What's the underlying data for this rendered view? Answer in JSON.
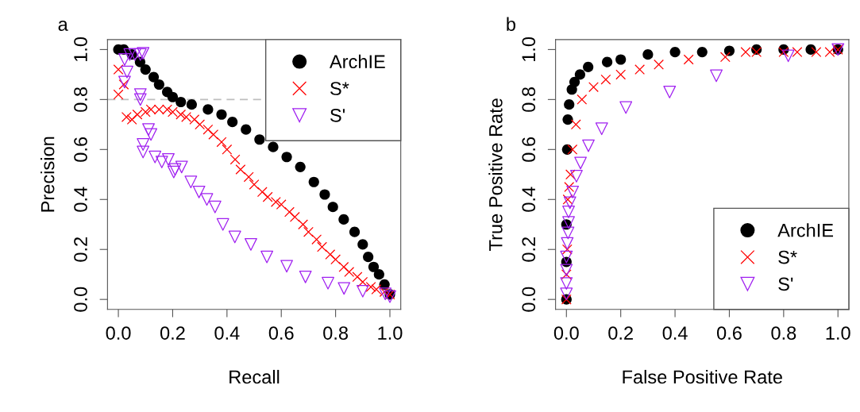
{
  "chart_data": [
    {
      "type": "scatter",
      "title": "a",
      "xlabel": "Recall",
      "ylabel": "Precision",
      "xlim": [
        -0.04,
        1.04
      ],
      "ylim": [
        -0.04,
        1.04
      ],
      "xticks": [
        {
          "value": 0,
          "label": "0.0"
        },
        {
          "value": 0.2,
          "label": "0.2"
        },
        {
          "value": 0.4,
          "label": "0.4"
        },
        {
          "value": 0.6,
          "label": "0.6"
        },
        {
          "value": 0.8,
          "label": "0.8"
        },
        {
          "value": 1,
          "label": "1.0"
        }
      ],
      "yticks": [
        {
          "value": 0,
          "label": "0.0"
        },
        {
          "value": 0.2,
          "label": "0.2"
        },
        {
          "value": 0.4,
          "label": "0.4"
        },
        {
          "value": 0.6,
          "label": "0.6"
        },
        {
          "value": 0.8,
          "label": "0.8"
        },
        {
          "value": 1,
          "label": "1.0"
        }
      ],
      "grid": false,
      "legend": "top right",
      "ref_lines": [
        {
          "axis": "y",
          "value": 0.8,
          "color": "#bebebe",
          "line_style": "dashed"
        }
      ],
      "series": [
        {
          "name": "ArchIE",
          "color": "#000000",
          "marker": "circle",
          "x": [
            0.0,
            0.02,
            0.05,
            0.08,
            0.1,
            0.13,
            0.15,
            0.18,
            0.2,
            0.23,
            0.27,
            0.33,
            0.38,
            0.42,
            0.47,
            0.52,
            0.57,
            0.62,
            0.67,
            0.72,
            0.76,
            0.79,
            0.83,
            0.87,
            0.9,
            0.92,
            0.94,
            0.96,
            0.98,
            1.0
          ],
          "values": [
            1.0,
            1.0,
            0.98,
            0.95,
            0.92,
            0.89,
            0.86,
            0.83,
            0.81,
            0.79,
            0.78,
            0.76,
            0.74,
            0.71,
            0.68,
            0.64,
            0.61,
            0.57,
            0.53,
            0.47,
            0.42,
            0.37,
            0.32,
            0.27,
            0.22,
            0.17,
            0.13,
            0.1,
            0.06,
            0.02
          ]
        },
        {
          "name": "S*",
          "color": "#ff0000",
          "marker": "cross",
          "x": [
            0.0,
            0.0,
            0.02,
            0.03,
            0.05,
            0.07,
            0.1,
            0.12,
            0.15,
            0.18,
            0.2,
            0.23,
            0.25,
            0.28,
            0.3,
            0.33,
            0.35,
            0.38,
            0.4,
            0.43,
            0.45,
            0.48,
            0.5,
            0.53,
            0.55,
            0.58,
            0.6,
            0.63,
            0.65,
            0.68,
            0.7,
            0.73,
            0.75,
            0.78,
            0.8,
            0.83,
            0.85,
            0.88,
            0.9,
            0.93,
            0.95,
            0.98,
            1.0
          ],
          "values": [
            0.92,
            0.82,
            0.86,
            0.73,
            0.72,
            0.74,
            0.75,
            0.76,
            0.76,
            0.76,
            0.75,
            0.74,
            0.73,
            0.72,
            0.7,
            0.68,
            0.66,
            0.63,
            0.6,
            0.56,
            0.52,
            0.49,
            0.46,
            0.43,
            0.41,
            0.39,
            0.38,
            0.35,
            0.33,
            0.3,
            0.27,
            0.24,
            0.21,
            0.18,
            0.16,
            0.13,
            0.11,
            0.09,
            0.07,
            0.05,
            0.04,
            0.03,
            0.02
          ]
        },
        {
          "name": "S'",
          "color": "#a020f0",
          "marker": "triangle",
          "x": [
            0.023,
            0.032,
            0.023,
            0.042,
            0.061,
            0.081,
            0.091,
            0.081,
            0.081,
            0.111,
            0.12,
            0.091,
            0.091,
            0.135,
            0.16,
            0.184,
            0.209,
            0.233,
            0.204,
            0.267,
            0.297,
            0.326,
            0.356,
            0.385,
            0.429,
            0.488,
            0.547,
            0.62,
            0.689,
            0.772,
            0.831,
            0.9,
            0.983,
            1.0
          ],
          "values": [
            0.96,
            0.91,
            0.87,
            0.98,
            0.98,
            0.98,
            0.985,
            0.82,
            0.8,
            0.68,
            0.66,
            0.62,
            0.59,
            0.57,
            0.55,
            0.56,
            0.52,
            0.53,
            0.51,
            0.47,
            0.43,
            0.4,
            0.37,
            0.3,
            0.25,
            0.22,
            0.17,
            0.133,
            0.09,
            0.065,
            0.044,
            0.033,
            0.022,
            0.011
          ]
        }
      ]
    },
    {
      "type": "scatter",
      "title": "b",
      "xlabel": "False Positive Rate",
      "ylabel": "True Positive Rate",
      "xlim": [
        -0.04,
        1.04
      ],
      "ylim": [
        -0.04,
        1.04
      ],
      "xticks": [
        {
          "value": 0,
          "label": "0.0"
        },
        {
          "value": 0.2,
          "label": "0.2"
        },
        {
          "value": 0.4,
          "label": "0.4"
        },
        {
          "value": 0.6,
          "label": "0.6"
        },
        {
          "value": 0.8,
          "label": "0.8"
        },
        {
          "value": 1,
          "label": "1.0"
        }
      ],
      "yticks": [
        {
          "value": 0,
          "label": "0.0"
        },
        {
          "value": 0.2,
          "label": "0.2"
        },
        {
          "value": 0.4,
          "label": "0.4"
        },
        {
          "value": 0.6,
          "label": "0.6"
        },
        {
          "value": 0.8,
          "label": "0.8"
        },
        {
          "value": 1,
          "label": "1.0"
        }
      ],
      "grid": false,
      "legend": "bottom right",
      "series": [
        {
          "name": "ArchIE",
          "color": "#000000",
          "marker": "circle",
          "x": [
            0.0,
            0.0,
            0.0,
            0.003,
            0.005,
            0.01,
            0.02,
            0.03,
            0.05,
            0.08,
            0.15,
            0.2,
            0.3,
            0.4,
            0.5,
            0.6,
            0.7,
            0.8,
            0.9,
            1.0
          ],
          "values": [
            0.0,
            0.15,
            0.3,
            0.6,
            0.72,
            0.78,
            0.84,
            0.87,
            0.9,
            0.93,
            0.95,
            0.96,
            0.98,
            0.99,
            0.99,
            0.995,
            1.0,
            1.0,
            1.0,
            1.0
          ]
        },
        {
          "name": "S*",
          "color": "#ff0000",
          "marker": "cross",
          "x": [
            0.0,
            0.0,
            0.003,
            0.005,
            0.01,
            0.015,
            0.022,
            0.035,
            0.057,
            0.1,
            0.145,
            0.2,
            0.27,
            0.34,
            0.45,
            0.585,
            0.66,
            0.7,
            0.8,
            0.85,
            0.92,
            0.97,
            1.0
          ],
          "values": [
            0.0,
            0.1,
            0.2,
            0.4,
            0.45,
            0.5,
            0.6,
            0.7,
            0.8,
            0.85,
            0.88,
            0.9,
            0.92,
            0.94,
            0.96,
            0.97,
            0.99,
            0.99,
            0.99,
            0.99,
            0.99,
            0.99,
            1.0
          ]
        },
        {
          "name": "S'",
          "color": "#a020f0",
          "marker": "triangle",
          "x": [
            1.0,
            0.817,
            0.552,
            0.38,
            0.219,
            0.13,
            0.081,
            0.052,
            0.037,
            0.023,
            0.013,
            0.008,
            0.008,
            0.006,
            0.003,
            0.0,
            0.0,
            0.0,
            0.0
          ],
          "values": [
            1.0,
            0.975,
            0.895,
            0.83,
            0.768,
            0.683,
            0.615,
            0.546,
            0.493,
            0.43,
            0.387,
            0.35,
            0.308,
            0.266,
            0.224,
            0.17,
            0.117,
            0.064,
            0.022
          ]
        }
      ]
    }
  ]
}
